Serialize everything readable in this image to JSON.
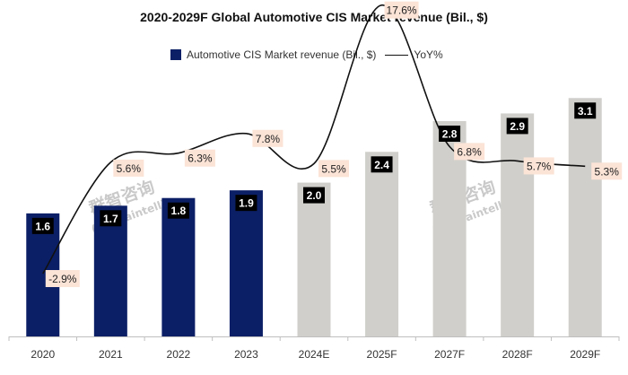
{
  "chart_data": {
    "type": "bar",
    "title": "2020-2029F Global Automotive CIS Market revenue (Bil., $)",
    "categories": [
      "2020",
      "2021",
      "2022",
      "2023",
      "2024E",
      "2025F",
      "2027F",
      "2028F",
      "2029F"
    ],
    "series": [
      {
        "name": "Automotive CIS Market revenue (Bil., $)",
        "type": "bar",
        "values": [
          1.6,
          1.7,
          1.8,
          1.9,
          2.0,
          2.4,
          2.8,
          2.9,
          3.1
        ],
        "labels": [
          "1.6",
          "1.7",
          "1.8",
          "1.9",
          "2.0",
          "2.4",
          "2.8",
          "2.9",
          "3.1"
        ]
      },
      {
        "name": "YoY%",
        "type": "line",
        "values": [
          -2.9,
          5.6,
          6.3,
          7.8,
          5.5,
          17.6,
          6.8,
          5.7,
          5.3
        ],
        "labels": [
          "-2.9%",
          "5.6%",
          "6.3%",
          "7.8%",
          "5.5%",
          "17.6%",
          "6.8%",
          "5.7%",
          "5.3%"
        ]
      }
    ],
    "actual_count": 4,
    "ylim": [
      0,
      3.5
    ],
    "y2lim": [
      -6,
      21
    ],
    "legend_position": "top-left",
    "colors": {
      "actual": "#0b1f66",
      "forecast": "#d0cfcb",
      "line": "#111111",
      "yoy_label_bg": "#fbe3d6",
      "bar_label_bg": "#000000"
    }
  },
  "watermark": {
    "cn": "群智咨询",
    "en": "(Sigmaintell)"
  }
}
